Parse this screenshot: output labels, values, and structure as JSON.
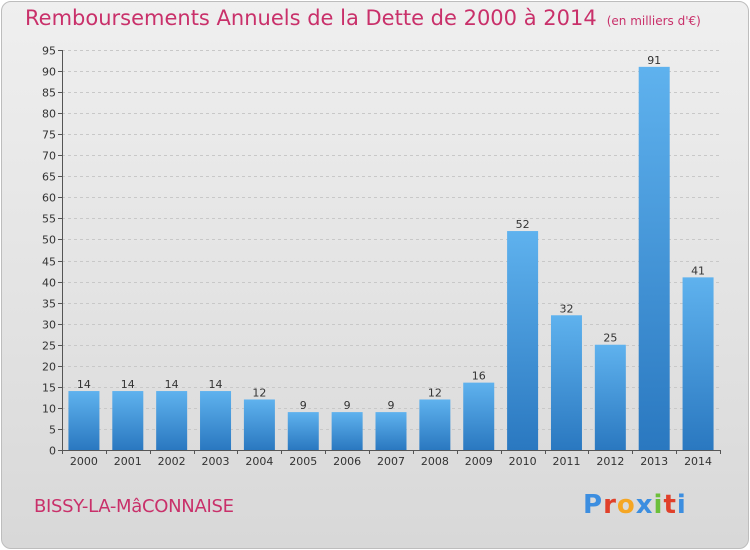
{
  "header": {
    "title": "Remboursements Annuels de la Dette de 2000 à 2014",
    "unit": "(en milliers d'€)"
  },
  "footer": {
    "commune": "BISSY-LA-MâCONNAISE",
    "logo_letters": [
      "P",
      "r",
      "o",
      "x",
      "i",
      "t",
      "i"
    ],
    "logo_colors": [
      "#3c8ee0",
      "#e0402a",
      "#f5a623",
      "#3c8ee0",
      "#6cbf3a",
      "#e0402a",
      "#3c8ee0"
    ]
  },
  "chart_data": {
    "type": "bar",
    "categories": [
      "2000",
      "2001",
      "2002",
      "2003",
      "2004",
      "2005",
      "2006",
      "2007",
      "2008",
      "2009",
      "2010",
      "2011",
      "2012",
      "2013",
      "2014"
    ],
    "values": [
      14,
      14,
      14,
      14,
      12,
      9,
      9,
      9,
      12,
      16,
      52,
      32,
      25,
      91,
      41
    ],
    "ylim": [
      0,
      95
    ],
    "yticks": [
      0,
      5,
      10,
      15,
      20,
      25,
      30,
      35,
      40,
      45,
      50,
      55,
      60,
      65,
      70,
      75,
      80,
      85,
      90,
      95
    ],
    "grid": true,
    "bar_color": "#4da3e3"
  }
}
